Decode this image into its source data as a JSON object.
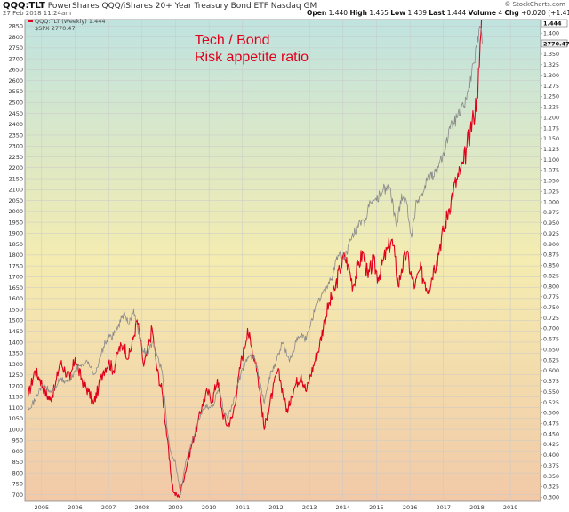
{
  "header": {
    "ticker": "QQQ:TLT",
    "description": "PowerShares QQQ/iShares 20+ Year Treasury Bond ETF",
    "exchange": "Nasdaq GM",
    "datetime": "27 Feb 2018 11:24am",
    "ohlc": {
      "open_label": "Open",
      "open": "1.440",
      "high_label": "High",
      "high": "1.455",
      "low_label": "Low",
      "low": "1.439",
      "last_label": "Last",
      "last": "1.444",
      "volume_label": "Volume",
      "volume": "4",
      "chg_label": "Chg",
      "chg": "+0.020 (+1.41%)"
    },
    "credit": "© StockCharts.com"
  },
  "legend": {
    "series1": "QQQ:TLT (Weekly) 1.444",
    "series2": "$SPX 2770.47"
  },
  "annotations": {
    "line1": "Tech / Bond",
    "line2": "Risk appetite ratio"
  },
  "colors": {
    "ratio_line": "#e0001b",
    "spx_line": "#8a8a8a",
    "bg_top": "#bfe3e0",
    "bg_mid": "#f4ecb0",
    "bg_bottom": "#f2c9a8",
    "grid": "#c8c8c8"
  },
  "chart_data": {
    "type": "line",
    "title": "QQQ:TLT PowerShares QQQ/iShares 20+ Year Treasury Bond ETF",
    "xlim": [
      2004.5,
      2019.9
    ],
    "x_ticks": [
      2005,
      2006,
      2007,
      2008,
      2009,
      2010,
      2011,
      2012,
      2013,
      2014,
      2015,
      2016,
      2017,
      2018,
      2019
    ],
    "left_axis": {
      "label": "",
      "ylim": [
        670,
        2880
      ],
      "ticks": [
        700,
        750,
        800,
        850,
        900,
        950,
        1000,
        1050,
        1100,
        1150,
        1200,
        1250,
        1300,
        1350,
        1400,
        1450,
        1500,
        1550,
        1600,
        1650,
        1700,
        1750,
        1800,
        1850,
        1900,
        1950,
        2000,
        2050,
        2100,
        2150,
        2200,
        2250,
        2300,
        2350,
        2400,
        2450,
        2500,
        2550,
        2600,
        2650,
        2700,
        2750,
        2800,
        2850
      ]
    },
    "right_axis": {
      "label": "",
      "ylim": [
        0.29,
        1.432
      ],
      "ticks": [
        "0.300",
        "0.325",
        "0.350",
        "0.375",
        "0.400",
        "0.425",
        "0.450",
        "0.475",
        "0.500",
        "0.525",
        "0.550",
        "0.575",
        "0.600",
        "0.625",
        "0.650",
        "0.675",
        "0.700",
        "0.725",
        "0.750",
        "0.775",
        "0.800",
        "0.825",
        "0.850",
        "0.875",
        "0.900",
        "0.925",
        "0.950",
        "0.975",
        "1.000",
        "1.025",
        "1.050",
        "1.075",
        "1.100",
        "1.125",
        "1.150",
        "1.175",
        "1.200",
        "1.225",
        "1.250",
        "1.275",
        "1.300",
        "1.325",
        "1.350",
        "1.375",
        "1.400",
        "1.425"
      ],
      "last_value_tags": [
        "1.444",
        "2770.47"
      ]
    },
    "grid": true,
    "series": [
      {
        "name": "QQQ:TLT (Weekly) 1.444",
        "axis": "right",
        "points": [
          [
            2004.6,
            0.54
          ],
          [
            2004.8,
            0.6
          ],
          [
            2004.95,
            0.58
          ],
          [
            2005.1,
            0.55
          ],
          [
            2005.25,
            0.53
          ],
          [
            2005.4,
            0.56
          ],
          [
            2005.55,
            0.62
          ],
          [
            2005.7,
            0.6
          ],
          [
            2005.85,
            0.58
          ],
          [
            2006.0,
            0.63
          ],
          [
            2006.1,
            0.6
          ],
          [
            2006.25,
            0.57
          ],
          [
            2006.4,
            0.55
          ],
          [
            2006.55,
            0.52
          ],
          [
            2006.7,
            0.56
          ],
          [
            2006.85,
            0.6
          ],
          [
            2007.0,
            0.62
          ],
          [
            2007.15,
            0.6
          ],
          [
            2007.3,
            0.65
          ],
          [
            2007.45,
            0.66
          ],
          [
            2007.6,
            0.63
          ],
          [
            2007.75,
            0.68
          ],
          [
            2007.85,
            0.72
          ],
          [
            2007.95,
            0.67
          ],
          [
            2008.05,
            0.61
          ],
          [
            2008.15,
            0.64
          ],
          [
            2008.3,
            0.7
          ],
          [
            2008.45,
            0.6
          ],
          [
            2008.6,
            0.55
          ],
          [
            2008.75,
            0.44
          ],
          [
            2008.85,
            0.36
          ],
          [
            2008.95,
            0.31
          ],
          [
            2009.1,
            0.3
          ],
          [
            2009.2,
            0.33
          ],
          [
            2009.35,
            0.38
          ],
          [
            2009.5,
            0.43
          ],
          [
            2009.65,
            0.47
          ],
          [
            2009.8,
            0.52
          ],
          [
            2009.95,
            0.55
          ],
          [
            2010.1,
            0.53
          ],
          [
            2010.25,
            0.58
          ],
          [
            2010.4,
            0.5
          ],
          [
            2010.55,
            0.47
          ],
          [
            2010.7,
            0.49
          ],
          [
            2010.85,
            0.56
          ],
          [
            2010.95,
            0.62
          ],
          [
            2011.05,
            0.65
          ],
          [
            2011.15,
            0.7
          ],
          [
            2011.25,
            0.66
          ],
          [
            2011.4,
            0.62
          ],
          [
            2011.55,
            0.53
          ],
          [
            2011.65,
            0.46
          ],
          [
            2011.75,
            0.5
          ],
          [
            2011.9,
            0.55
          ],
          [
            2012.05,
            0.6
          ],
          [
            2012.15,
            0.57
          ],
          [
            2012.25,
            0.53
          ],
          [
            2012.35,
            0.5
          ],
          [
            2012.45,
            0.54
          ],
          [
            2012.6,
            0.57
          ],
          [
            2012.75,
            0.59
          ],
          [
            2012.9,
            0.55
          ],
          [
            2013.0,
            0.58
          ],
          [
            2013.15,
            0.62
          ],
          [
            2013.3,
            0.66
          ],
          [
            2013.45,
            0.72
          ],
          [
            2013.6,
            0.76
          ],
          [
            2013.75,
            0.79
          ],
          [
            2013.9,
            0.84
          ],
          [
            2014.05,
            0.87
          ],
          [
            2014.15,
            0.85
          ],
          [
            2014.3,
            0.8
          ],
          [
            2014.45,
            0.85
          ],
          [
            2014.6,
            0.88
          ],
          [
            2014.75,
            0.82
          ],
          [
            2014.9,
            0.86
          ],
          [
            2015.05,
            0.82
          ],
          [
            2015.2,
            0.86
          ],
          [
            2015.35,
            0.89
          ],
          [
            2015.45,
            0.91
          ],
          [
            2015.55,
            0.87
          ],
          [
            2015.65,
            0.8
          ],
          [
            2015.75,
            0.84
          ],
          [
            2015.9,
            0.88
          ],
          [
            2016.05,
            0.82
          ],
          [
            2016.15,
            0.8
          ],
          [
            2016.3,
            0.84
          ],
          [
            2016.45,
            0.81
          ],
          [
            2016.55,
            0.79
          ],
          [
            2016.7,
            0.84
          ],
          [
            2016.8,
            0.86
          ],
          [
            2016.9,
            0.9
          ],
          [
            2017.0,
            0.93
          ],
          [
            2017.15,
            0.98
          ],
          [
            2017.3,
            1.03
          ],
          [
            2017.45,
            1.06
          ],
          [
            2017.6,
            1.09
          ],
          [
            2017.7,
            1.13
          ],
          [
            2017.8,
            1.17
          ],
          [
            2017.9,
            1.2
          ],
          [
            2018.0,
            1.25
          ],
          [
            2018.07,
            1.32
          ],
          [
            2018.12,
            1.4
          ],
          [
            2018.16,
            1.444
          ]
        ]
      },
      {
        "name": "$SPX 2770.47",
        "axis": "left",
        "points": [
          [
            2004.6,
            1100
          ],
          [
            2004.8,
            1130
          ],
          [
            2004.95,
            1190
          ],
          [
            2005.1,
            1200
          ],
          [
            2005.25,
            1170
          ],
          [
            2005.4,
            1190
          ],
          [
            2005.55,
            1230
          ],
          [
            2005.7,
            1220
          ],
          [
            2005.85,
            1220
          ],
          [
            2006.0,
            1270
          ],
          [
            2006.2,
            1300
          ],
          [
            2006.4,
            1310
          ],
          [
            2006.55,
            1250
          ],
          [
            2006.7,
            1300
          ],
          [
            2006.85,
            1380
          ],
          [
            2007.0,
            1420
          ],
          [
            2007.15,
            1430
          ],
          [
            2007.3,
            1480
          ],
          [
            2007.45,
            1530
          ],
          [
            2007.6,
            1480
          ],
          [
            2007.75,
            1550
          ],
          [
            2007.85,
            1480
          ],
          [
            2008.0,
            1380
          ],
          [
            2008.15,
            1340
          ],
          [
            2008.3,
            1400
          ],
          [
            2008.45,
            1340
          ],
          [
            2008.6,
            1270
          ],
          [
            2008.75,
            1000
          ],
          [
            2008.85,
            900
          ],
          [
            2009.0,
            850
          ],
          [
            2009.15,
            700
          ],
          [
            2009.3,
            850
          ],
          [
            2009.45,
            930
          ],
          [
            2009.6,
            1000
          ],
          [
            2009.75,
            1070
          ],
          [
            2009.9,
            1110
          ],
          [
            2010.1,
            1100
          ],
          [
            2010.3,
            1200
          ],
          [
            2010.45,
            1070
          ],
          [
            2010.55,
            1050
          ],
          [
            2010.7,
            1110
          ],
          [
            2010.85,
            1200
          ],
          [
            2011.0,
            1280
          ],
          [
            2011.15,
            1330
          ],
          [
            2011.35,
            1340
          ],
          [
            2011.55,
            1200
          ],
          [
            2011.65,
            1120
          ],
          [
            2011.8,
            1240
          ],
          [
            2012.0,
            1310
          ],
          [
            2012.2,
            1400
          ],
          [
            2012.4,
            1310
          ],
          [
            2012.6,
            1400
          ],
          [
            2012.75,
            1430
          ],
          [
            2012.9,
            1410
          ],
          [
            2013.05,
            1500
          ],
          [
            2013.25,
            1580
          ],
          [
            2013.45,
            1640
          ],
          [
            2013.65,
            1690
          ],
          [
            2013.85,
            1800
          ],
          [
            2014.05,
            1790
          ],
          [
            2014.25,
            1870
          ],
          [
            2014.5,
            1960
          ],
          [
            2014.65,
            1930
          ],
          [
            2014.8,
            2050
          ],
          [
            2015.0,
            2050
          ],
          [
            2015.2,
            2100
          ],
          [
            2015.4,
            2110
          ],
          [
            2015.6,
            1930
          ],
          [
            2015.75,
            2080
          ],
          [
            2015.9,
            2040
          ],
          [
            2016.05,
            1880
          ],
          [
            2016.2,
            2050
          ],
          [
            2016.4,
            2090
          ],
          [
            2016.55,
            2170
          ],
          [
            2016.7,
            2160
          ],
          [
            2016.85,
            2200
          ],
          [
            2017.0,
            2270
          ],
          [
            2017.2,
            2380
          ],
          [
            2017.4,
            2430
          ],
          [
            2017.6,
            2480
          ],
          [
            2017.75,
            2560
          ],
          [
            2017.9,
            2680
          ],
          [
            2018.0,
            2750
          ],
          [
            2018.08,
            2850
          ],
          [
            2018.16,
            2770
          ]
        ]
      }
    ]
  }
}
